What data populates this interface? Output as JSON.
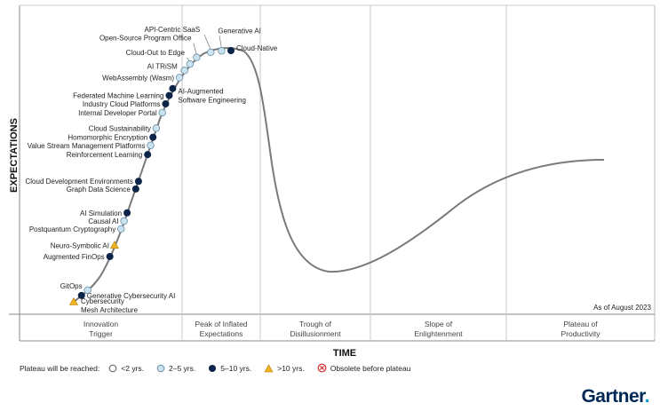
{
  "chart_data": {
    "type": "line",
    "title": "",
    "xlabel": "TIME",
    "ylabel": "EXPECTATIONS",
    "note": "As of August 2023",
    "phases": [
      "Innovation Trigger",
      "Peak of Inflated Expectations",
      "Trough of Disillusionment",
      "Slope of Enlightenment",
      "Plateau of Productivity"
    ],
    "legend_title": "Plateau will be reached:",
    "legend": [
      {
        "key": "lt2",
        "label": "<2 yrs."
      },
      {
        "key": "2to5",
        "label": "2–5 yrs."
      },
      {
        "key": "5to10",
        "label": "5–10 yrs."
      },
      {
        "key": "gt10",
        "label": ">10 yrs."
      },
      {
        "key": "obsolete",
        "label": "Obsolete before plateau"
      }
    ],
    "points": [
      {
        "name": "Cybersecurity Mesh Architecture",
        "t": 0.0,
        "category": "gt10"
      },
      {
        "name": "Generative Cybersecurity AI",
        "t": 0.032,
        "category": "5to10"
      },
      {
        "name": "GitOps",
        "t": 0.058,
        "category": "2to5"
      },
      {
        "name": "Augmented FinOps",
        "t": 0.188,
        "category": "5to10"
      },
      {
        "name": "Neuro-Symbolic AI",
        "t": 0.227,
        "category": "gt10"
      },
      {
        "name": "Postquantum Cryptography",
        "t": 0.283,
        "category": "2to5"
      },
      {
        "name": "Causal AI",
        "t": 0.31,
        "category": "2to5"
      },
      {
        "name": "AI Simulation",
        "t": 0.338,
        "category": "5to10"
      },
      {
        "name": "Graph Data Science",
        "t": 0.419,
        "category": "5to10"
      },
      {
        "name": "Cloud Development Environments",
        "t": 0.445,
        "category": "5to10"
      },
      {
        "name": "Reinforcement Learning",
        "t": 0.535,
        "category": "5to10"
      },
      {
        "name": "Value Stream Management Platforms",
        "t": 0.566,
        "category": "2to5"
      },
      {
        "name": "Homomorphic Encryption",
        "t": 0.593,
        "category": "5to10"
      },
      {
        "name": "Cloud Sustainability",
        "t": 0.624,
        "category": "2to5"
      },
      {
        "name": "Internal Developer Portal",
        "t": 0.677,
        "category": "2to5"
      },
      {
        "name": "Industry Cloud Platforms",
        "t": 0.707,
        "category": "5to10"
      },
      {
        "name": "Federated Machine Learning",
        "t": 0.736,
        "category": "5to10"
      },
      {
        "name": "AI-Augmented Software Engineering",
        "t": 0.761,
        "category": "5to10"
      },
      {
        "name": "WebAssembly (Wasm)",
        "t": 0.802,
        "category": "2to5"
      },
      {
        "name": "AI TRiSM",
        "t": 0.83,
        "category": "2to5"
      },
      {
        "name": "Cloud-Out to Edge",
        "t": 0.857,
        "category": "2to5"
      },
      {
        "name": "Open-Source Program Office",
        "t": 0.887,
        "category": "2to5"
      },
      {
        "name": "API-Centric SaaS",
        "t": 0.935,
        "category": "2to5"
      },
      {
        "name": "Generative AI",
        "t": 0.97,
        "category": "2to5"
      },
      {
        "name": "Cloud-Native",
        "t": 1.0,
        "category": "5to10"
      }
    ]
  },
  "brand": {
    "name": "Gartner",
    "mark": "."
  }
}
